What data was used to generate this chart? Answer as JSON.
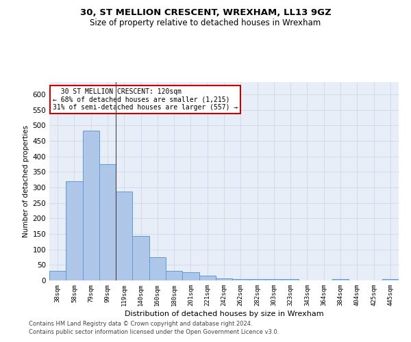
{
  "title": "30, ST MELLION CRESCENT, WREXHAM, LL13 9GZ",
  "subtitle": "Size of property relative to detached houses in Wrexham",
  "xlabel": "Distribution of detached houses by size in Wrexham",
  "ylabel": "Number of detached properties",
  "categories": [
    "38sqm",
    "58sqm",
    "79sqm",
    "99sqm",
    "119sqm",
    "140sqm",
    "160sqm",
    "180sqm",
    "201sqm",
    "221sqm",
    "242sqm",
    "262sqm",
    "282sqm",
    "303sqm",
    "323sqm",
    "343sqm",
    "364sqm",
    "384sqm",
    "404sqm",
    "425sqm",
    "445sqm"
  ],
  "values": [
    30,
    320,
    483,
    375,
    288,
    143,
    75,
    30,
    27,
    15,
    7,
    5,
    5,
    5,
    5,
    0,
    0,
    5,
    0,
    0,
    5
  ],
  "bar_color": "#aec6e8",
  "bar_edge_color": "#5b9bd5",
  "grid_color": "#d0d8e8",
  "background_color": "#e8eef8",
  "annotation_text": "  30 ST MELLION CRESCENT: 120sqm\n← 68% of detached houses are smaller (1,215)\n31% of semi-detached houses are larger (557) →",
  "annotation_box_color": "#ffffff",
  "annotation_box_edge": "#cc0000",
  "ylim": [
    0,
    640
  ],
  "yticks": [
    0,
    50,
    100,
    150,
    200,
    250,
    300,
    350,
    400,
    450,
    500,
    550,
    600
  ],
  "footer1": "Contains HM Land Registry data © Crown copyright and database right 2024.",
  "footer2": "Contains public sector information licensed under the Open Government Licence v3.0."
}
